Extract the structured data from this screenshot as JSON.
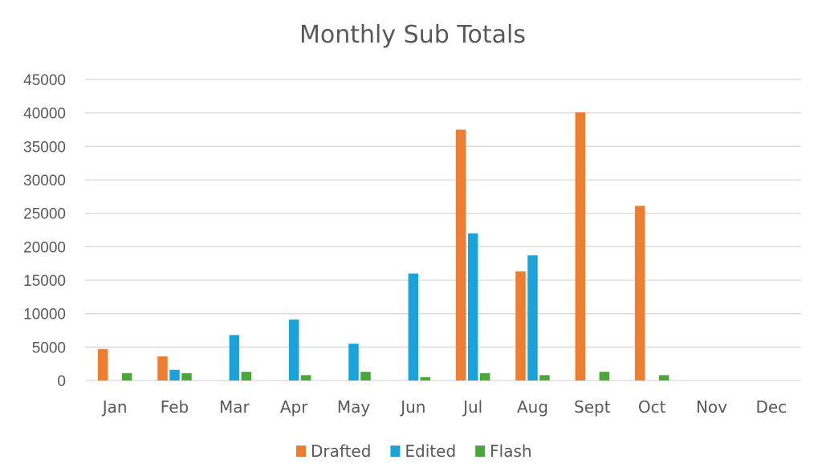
{
  "chart_data": {
    "type": "bar",
    "title": "Monthly Sub Totals",
    "categories": [
      "Jan",
      "Feb",
      "Mar",
      "Apr",
      "May",
      "Jun",
      "Jul",
      "Aug",
      "Sept",
      "Oct",
      "Nov",
      "Dec"
    ],
    "series": [
      {
        "name": "Drafted",
        "color": "#ed7d31",
        "values": [
          4700,
          3600,
          0,
          0,
          0,
          0,
          37500,
          16300,
          40100,
          26100,
          0,
          0
        ]
      },
      {
        "name": "Edited",
        "color": "#1aa3db",
        "values": [
          0,
          1600,
          6800,
          9100,
          5500,
          16000,
          22000,
          18700,
          0,
          0,
          0,
          0
        ]
      },
      {
        "name": "Flash",
        "color": "#4aa83a",
        "values": [
          1100,
          1100,
          1300,
          800,
          1300,
          500,
          1100,
          800,
          1300,
          800,
          0,
          0
        ]
      }
    ],
    "ylim": [
      0,
      45000
    ],
    "yticks": [
      0,
      5000,
      10000,
      15000,
      20000,
      25000,
      30000,
      35000,
      40000,
      45000
    ],
    "grid": true,
    "legend": "bottom"
  }
}
